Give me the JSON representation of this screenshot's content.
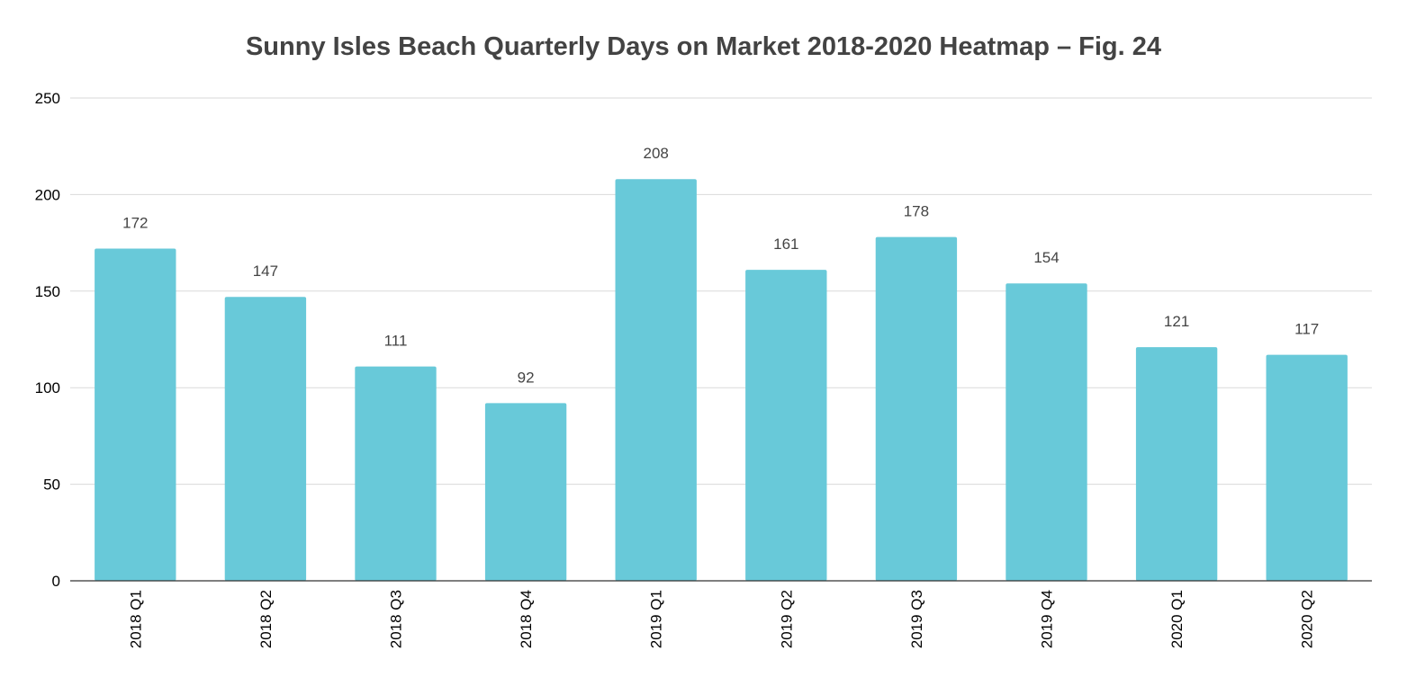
{
  "chart_data": {
    "type": "bar",
    "title": "Sunny Isles Beach Quarterly Days on Market 2018-2020 Heatmap – Fig. 24",
    "categories": [
      "2018 Q1",
      "2018 Q2",
      "2018 Q3",
      "2018 Q4",
      "2019 Q1",
      "2019 Q2",
      "2019 Q3",
      "2019 Q4",
      "2020 Q1",
      "2020 Q2"
    ],
    "values": [
      172,
      147,
      111,
      92,
      208,
      161,
      178,
      154,
      121,
      117
    ],
    "data_labels": [
      "172",
      "147",
      "111",
      "92",
      "208",
      "161",
      "178",
      "154",
      "121",
      "117"
    ],
    "ylim": [
      0,
      250
    ],
    "yticks": [
      "0",
      "50",
      "100",
      "150",
      "200",
      "250"
    ],
    "xlabel": "",
    "ylabel": "",
    "grid": true,
    "legend": "none",
    "colors": {
      "bar": "#68c9d9",
      "grid": "#d9d9d9",
      "axis": "#333333",
      "title": "#434343"
    }
  }
}
